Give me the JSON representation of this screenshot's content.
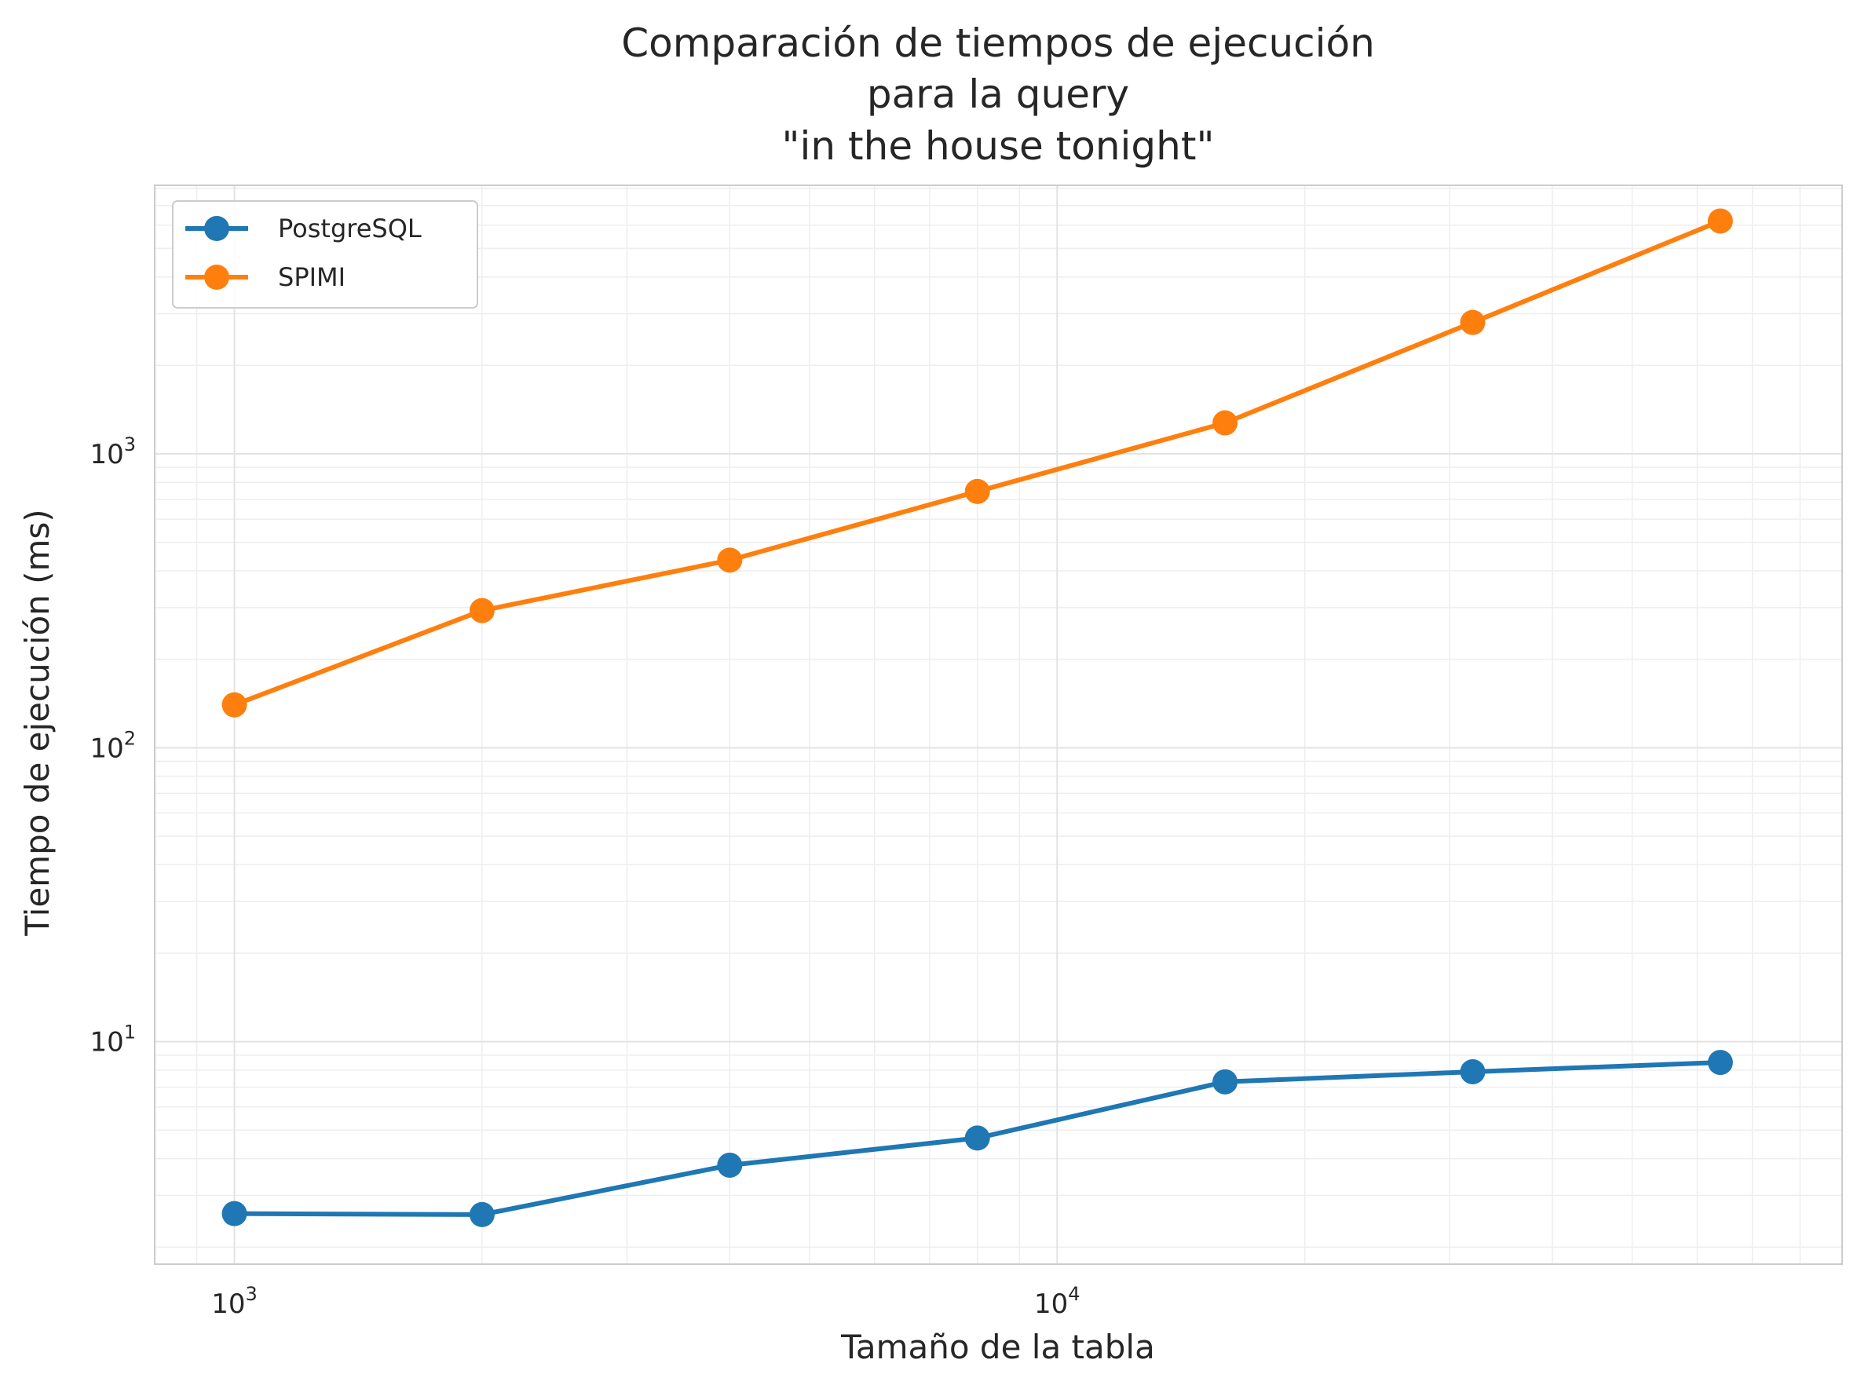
{
  "chart_data": {
    "type": "line",
    "title_lines": [
      "Comparación de tiempos de ejecución",
      "para la query",
      "\"in the house tonight\""
    ],
    "xlabel": "Tamaño de la tabla",
    "ylabel": "Tiempo de ejecución (ms)",
    "x_scale": "log",
    "y_scale": "log",
    "x": [
      1000,
      2000,
      4000,
      8000,
      16000,
      32000,
      64000
    ],
    "xlim": [
      800,
      90000
    ],
    "ylim": [
      1.75,
      8200
    ],
    "x_ticks": [
      {
        "base": "10",
        "exp": "3",
        "value": 1000
      },
      {
        "base": "10",
        "exp": "4",
        "value": 10000
      }
    ],
    "y_ticks": [
      {
        "base": "10",
        "exp": "1",
        "value": 10
      },
      {
        "base": "10",
        "exp": "2",
        "value": 100
      },
      {
        "base": "10",
        "exp": "3",
        "value": 1000
      }
    ],
    "grid": true,
    "legend_position": "top-left",
    "series": [
      {
        "name": "PostgreSQL",
        "color": "#1f77b4",
        "values": [
          2.6,
          2.58,
          3.8,
          4.7,
          7.3,
          7.9,
          8.5
        ]
      },
      {
        "name": "SPIMI",
        "color": "#ff7f0e",
        "values": [
          140,
          293,
          435,
          745,
          1275,
          2800,
          6200
        ]
      }
    ]
  }
}
